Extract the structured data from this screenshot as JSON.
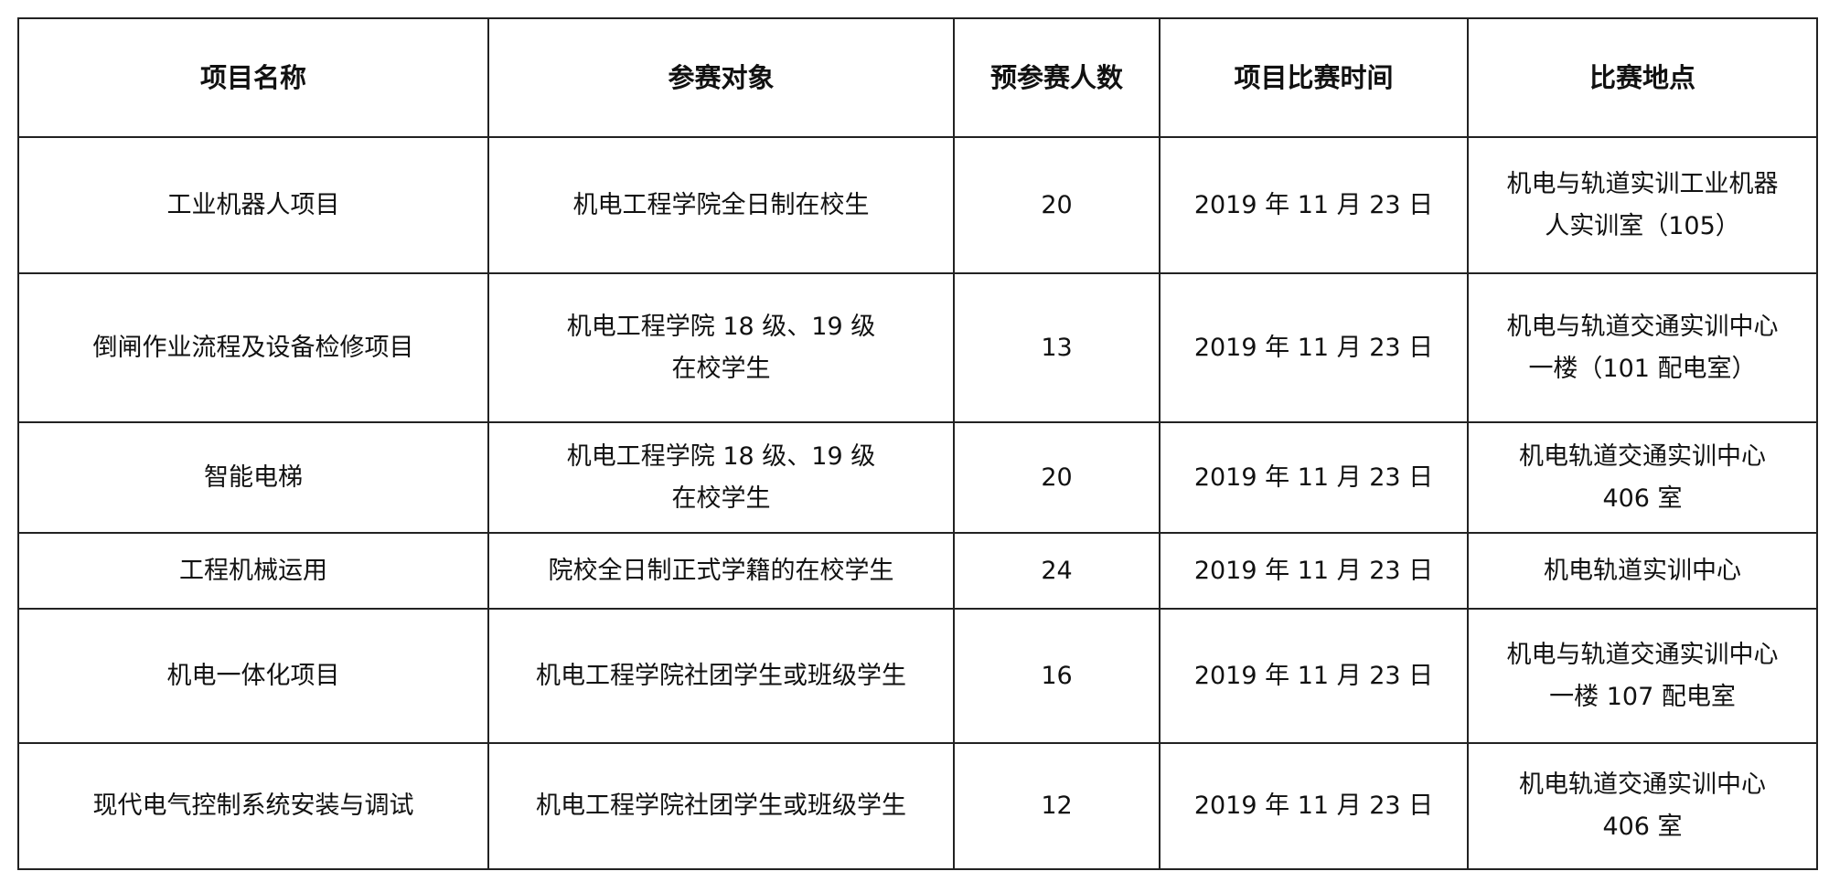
{
  "table": {
    "headers": [
      "项目名称",
      "参赛对象",
      "预参赛人数",
      "项目比赛时间",
      "比赛地点"
    ],
    "rows": [
      {
        "name": "工业机器人项目",
        "target": [
          "机电工程学院全日制在校生"
        ],
        "count": "20",
        "time": "2019 年 11 月  23 日",
        "location": [
          "机电与轨道实训工业机器",
          "人实训室（105）"
        ]
      },
      {
        "name": "倒闸作业流程及设备检修项目",
        "target": [
          "机电工程学院 18 级、19 级",
          "在校学生"
        ],
        "count": "13",
        "time": "2019 年 11 月  23 日",
        "location": [
          "机电与轨道交通实训中心",
          "一楼（101 配电室）"
        ]
      },
      {
        "name": "智能电梯",
        "target": [
          "机电工程学院 18 级、19 级",
          "在校学生"
        ],
        "count": "20",
        "time": "2019 年 11 月  23 日",
        "location": [
          "机电轨道交通实训中心",
          "406 室"
        ]
      },
      {
        "name": "工程机械运用",
        "target": [
          "院校全日制正式学籍的在校学生"
        ],
        "count": "24",
        "time": "2019 年 11 月  23 日",
        "location": [
          "机电轨道实训中心"
        ]
      },
      {
        "name": "机电一体化项目",
        "target": [
          "机电工程学院社团学生或班级学生"
        ],
        "count": "16",
        "time": "2019 年 11 月  23 日",
        "location": [
          "机电与轨道交通实训中心",
          "一楼 107 配电室"
        ]
      },
      {
        "name": "现代电气控制系统安装与调试",
        "target": [
          "机电工程学院社团学生或班级学生"
        ],
        "count": "12",
        "time": "2019 年 11 月  23 日",
        "location": [
          "机电轨道交通实训中心",
          "406 室"
        ]
      }
    ]
  }
}
